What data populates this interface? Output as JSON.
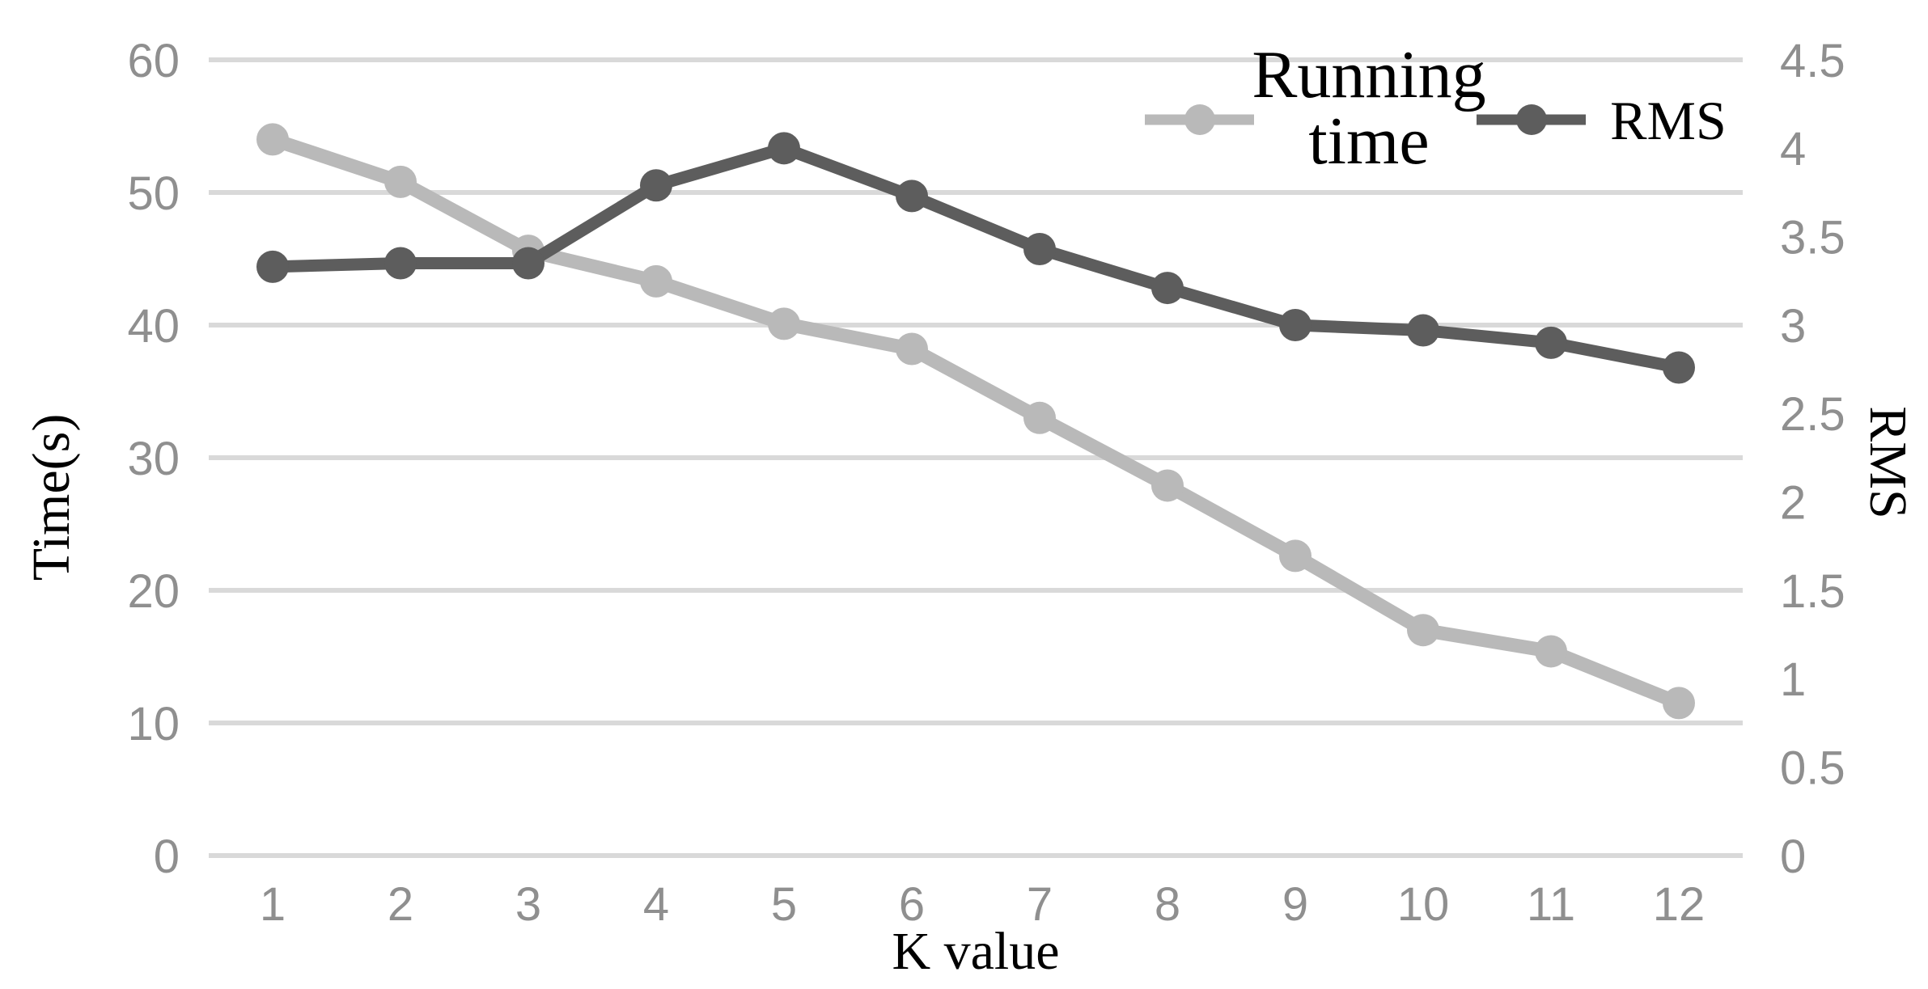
{
  "page": {
    "background": "#ffffff"
  },
  "colors": {
    "gridline": "#d9d9d9",
    "tick_text": "#8f8f8f",
    "title_text": "#000000",
    "running_time_series": "#b9b9b9",
    "rms_series": "#5d5d5d"
  },
  "axes": {
    "x": {
      "title": "K value",
      "tick_labels": [
        "1",
        "2",
        "3",
        "4",
        "5",
        "6",
        "7",
        "8",
        "9",
        "10",
        "11",
        "12"
      ]
    },
    "left": {
      "title": "Time(s)",
      "tick_labels": [
        "0",
        "10",
        "20",
        "30",
        "40",
        "50",
        "60"
      ],
      "tick_values": [
        0,
        10,
        20,
        30,
        40,
        50,
        60
      ],
      "range": [
        0,
        60
      ]
    },
    "right": {
      "title": "RMS",
      "tick_labels": [
        "0",
        "0.5",
        "1",
        "1.5",
        "2",
        "2.5",
        "3",
        "3.5",
        "4",
        "4.5"
      ],
      "tick_values": [
        0,
        0.5,
        1,
        1.5,
        2,
        2.5,
        3,
        3.5,
        4,
        4.5
      ],
      "range": [
        0,
        4.5
      ]
    }
  },
  "legend": {
    "items": [
      {
        "series": "Running time",
        "label_lines": [
          "Running",
          "time"
        ],
        "color": "#b9b9b9"
      },
      {
        "series": "RMS",
        "label_lines": [
          "RMS"
        ],
        "color": "#5d5d5d"
      }
    ]
  },
  "chart_data": {
    "type": "line",
    "title": "",
    "xlabel": "K value",
    "ylabel_left": "Time(s)",
    "ylabel_right": "RMS",
    "categories": [
      1,
      2,
      3,
      4,
      5,
      6,
      7,
      8,
      9,
      10,
      11,
      12
    ],
    "ylim_left": [
      0,
      60
    ],
    "ylim_right": [
      0,
      4.5
    ],
    "grid": "horizontal-only",
    "legend_position": "top-right-inside",
    "series": [
      {
        "name": "Running time",
        "axis": "left",
        "color": "#b9b9b9",
        "marker": "circle",
        "values": [
          54,
          50.8,
          45.6,
          43.3,
          40.1,
          38.2,
          33,
          27.9,
          22.6,
          17,
          15.4,
          11.5
        ]
      },
      {
        "name": "RMS",
        "axis": "right",
        "color": "#5d5d5d",
        "marker": "circle",
        "values": [
          3.33,
          3.35,
          3.35,
          3.79,
          4.0,
          3.73,
          3.43,
          3.21,
          3.0,
          2.97,
          2.9,
          2.76
        ]
      }
    ]
  }
}
